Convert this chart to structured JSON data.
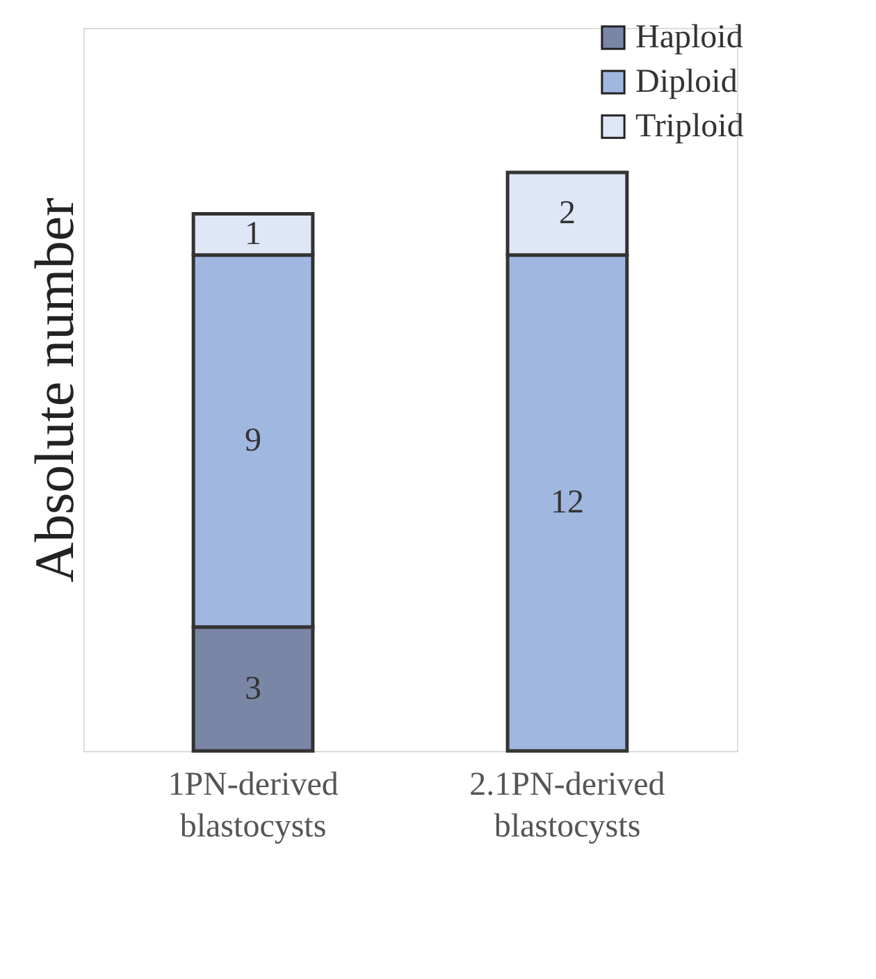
{
  "chart_data": {
    "type": "bar",
    "stacked": true,
    "ylabel": "Absolute number",
    "categories": [
      "1PN-derived blastocysts",
      "2.1PN-derived blastocysts"
    ],
    "series": [
      {
        "name": "Haploid",
        "color": "#7a86a6",
        "values": [
          3,
          null
        ]
      },
      {
        "name": "Diploid",
        "color": "#a0b7e0",
        "values": [
          9,
          12
        ]
      },
      {
        "name": "Triploid",
        "color": "#dfe7f7",
        "values": [
          1,
          2
        ]
      }
    ],
    "data_labels": true,
    "legend": "top right",
    "tick_labels": "x"
  }
}
